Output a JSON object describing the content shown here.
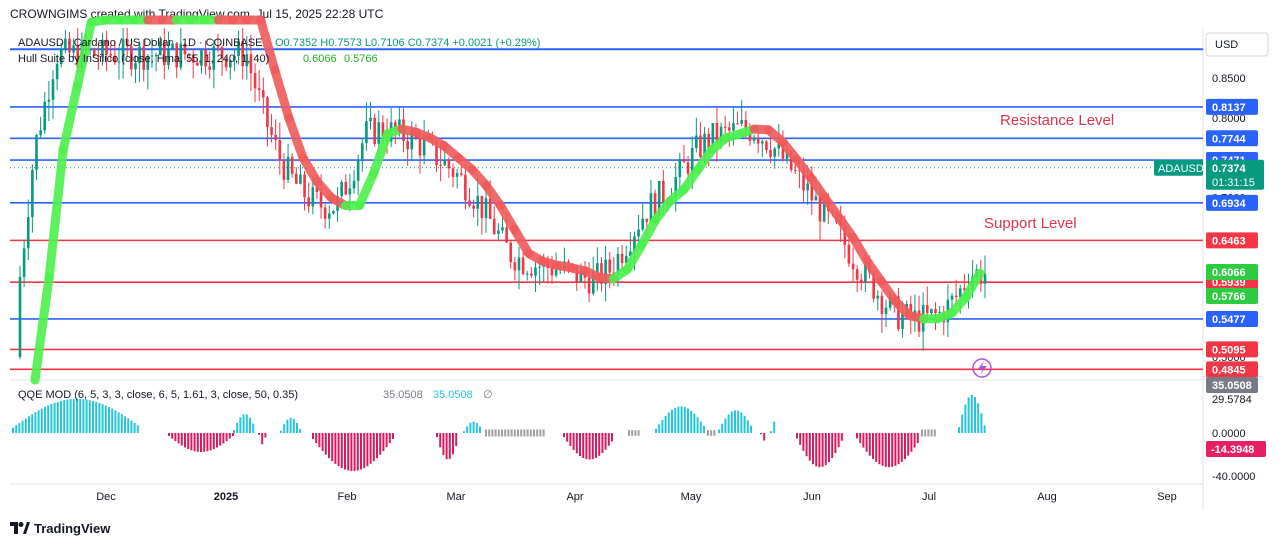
{
  "header": {
    "created_by": "CROWNGIMS created with TradingView.com, Jul 15, 2025 22:28 UTC"
  },
  "legend": {
    "symbol_line": "ADAUSD · Cardano / US Dollar · 1D · COINBASE",
    "ohlc": "O0.7352 H0.7573 L0.7106 C0.7374 +0.0021 (+0.29%)",
    "hull_line": "Hull Suite by InSilico (close, Hma, 55, 1, 240, 1, 40)",
    "hull_v1": "0.6066",
    "hull_v2": "0.5766",
    "qqe_line": "QQE MOD (6, 5, 3, 3, close, 6, 5, 1.61, 3, close, 50, 0.35)",
    "qqe_v1": "35.0508",
    "qqe_v2": "35.0508",
    "qqe_icon": "∅"
  },
  "annotations": {
    "resistance": "Resistance Level",
    "support": "Support Level"
  },
  "currency": "USD",
  "footer": {
    "brand": "TradingView"
  },
  "colors": {
    "blue_level": "#2962ff",
    "red_level": "#f23645",
    "candle_up": "#089981",
    "candle_down": "#f23645",
    "hull_green": "#4cf04c",
    "hull_red": "#f05a5a",
    "hist_cyan": "#26c6da",
    "hist_magenta": "#d81b60",
    "hist_gray": "#9e9e9e"
  },
  "chart_data": {
    "type": "candlestick",
    "symbol": "ADAUSD",
    "timeframe": "1D",
    "price_axis": {
      "range": [
        0.465,
        0.88
      ],
      "ticks": [
        "0.8500",
        "0.8000",
        "0.7500",
        "0.7000",
        "0.6500",
        "0.6000",
        "0.5500",
        "0.5000"
      ]
    },
    "time_axis": {
      "labels": [
        "Dec",
        "2025",
        "Feb",
        "Mar",
        "Apr",
        "May",
        "Jun",
        "Jul",
        "Aug",
        "Sep"
      ]
    },
    "current_price": {
      "label": "ADAUSD",
      "value": "0.7374",
      "countdown": "01:31:15"
    },
    "horizontal_levels": [
      {
        "value": 0.8137,
        "label": "0.8137",
        "color": "blue"
      },
      {
        "value": 0.7744,
        "label": "0.7744",
        "color": "blue"
      },
      {
        "value": 0.7471,
        "label": "0.7471",
        "color": "blue"
      },
      {
        "value": 0.6934,
        "label": "0.6934",
        "color": "blue"
      },
      {
        "value": 0.6463,
        "label": "0.6463",
        "color": "red"
      },
      {
        "value": 0.5939,
        "label": "0.5939",
        "color": "red"
      },
      {
        "value": 0.5477,
        "label": "0.5477",
        "color": "blue"
      },
      {
        "value": 0.5095,
        "label": "0.5095",
        "color": "red"
      },
      {
        "value": 0.4845,
        "label": "0.4845",
        "color": "red"
      }
    ],
    "top_line": 0.886,
    "hull_tags": [
      {
        "label": "0.6066",
        "value": 0.6066,
        "color": "green"
      },
      {
        "label": "0.5766",
        "value": 0.5766,
        "color": "green"
      }
    ],
    "hull_path_prices": [
      [
        0.45,
        0.6,
        0.76,
        0.84,
        0.92,
        1.0,
        1.05,
        1.05,
        1.05,
        1.0,
        0.98,
        1.02,
        1.04,
        1.05,
        1.03,
        1.0,
        0.95,
        0.86,
        0.8,
        0.75,
        0.72,
        0.7,
        0.69,
        0.69,
        0.73,
        0.78,
        0.786,
        0.782,
        0.775,
        0.765,
        0.75,
        0.735,
        0.715,
        0.69,
        0.66,
        0.63,
        0.62,
        0.615,
        0.612,
        0.608,
        0.6,
        0.598,
        0.61,
        0.64,
        0.672,
        0.695,
        0.71,
        0.735,
        0.76,
        0.775,
        0.78,
        0.786,
        0.785,
        0.77,
        0.748,
        0.725,
        0.7,
        0.675,
        0.65,
        0.62,
        0.595,
        0.57,
        0.552,
        0.548,
        0.548,
        0.555,
        0.575,
        0.605
      ]
    ],
    "qqe_histogram": {
      "axis_ticks": [
        "29.5784",
        "0.0000",
        "-40.0000"
      ],
      "tags": [
        {
          "label": "35.0508",
          "color": "gray"
        },
        {
          "label": "-14.3948",
          "color": "magenta"
        }
      ]
    }
  }
}
